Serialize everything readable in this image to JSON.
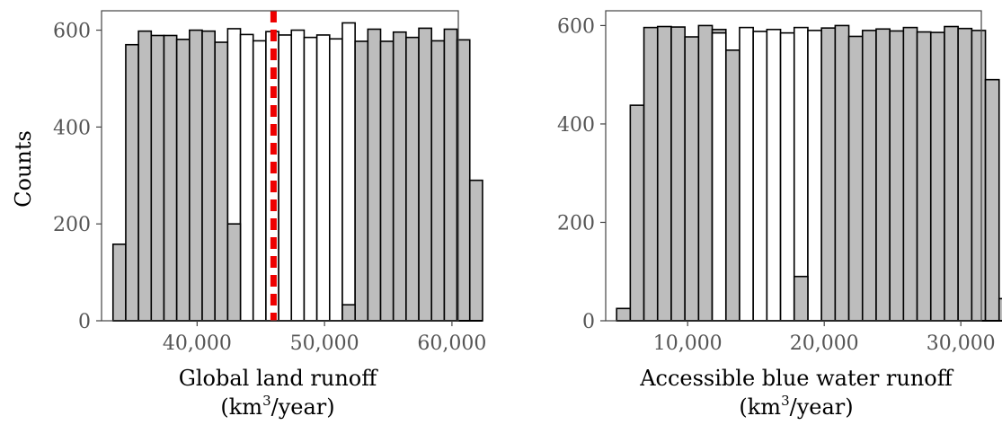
{
  "chart_data": [
    {
      "type": "bar",
      "subtype": "histogram",
      "ylabel": "Counts",
      "xlabel_line1": "Global land runoff",
      "xlabel_line2_pre": "(km",
      "xlabel_line2_sup": "3",
      "xlabel_line2_post": "/year)",
      "xlim": [
        32500,
        60500
      ],
      "ylim": [
        0,
        640
      ],
      "x_ticks": [
        40000,
        50000,
        60000
      ],
      "x_tick_labels": [
        "40,000",
        "50,000",
        "60,000"
      ],
      "y_ticks": [
        0,
        200,
        400,
        600
      ],
      "y_tick_labels": [
        "0",
        "200",
        "400",
        "600"
      ],
      "bin_start": 33400,
      "bin_width": 1000,
      "values": [
        158,
        570,
        598,
        589,
        589,
        581,
        600,
        598,
        575,
        603,
        591,
        578,
        597,
        590,
        600,
        585,
        590,
        582,
        615,
        577,
        602,
        577,
        596,
        585,
        604,
        578,
        602,
        580,
        290
      ],
      "overlay_values": [
        null,
        null,
        null,
        null,
        null,
        null,
        null,
        null,
        null,
        200,
        null,
        null,
        null,
        null,
        null,
        null,
        null,
        null,
        33,
        null,
        null,
        null,
        null,
        null,
        null,
        null,
        null,
        null,
        null
      ],
      "bar_colors": [
        "gray",
        "gray",
        "gray",
        "gray",
        "gray",
        "gray",
        "gray",
        "gray",
        "gray",
        "white",
        "white",
        "white",
        "white",
        "white",
        "white",
        "white",
        "white",
        "white",
        "white",
        "gray",
        "gray",
        "gray",
        "gray",
        "gray",
        "gray",
        "gray",
        "gray",
        "gray",
        "gray"
      ],
      "vline": 46000,
      "vline_color": "#ee0000",
      "vline_style": "dashed",
      "grid": false
    },
    {
      "type": "bar",
      "subtype": "histogram",
      "ylabel": "",
      "xlabel_line1": "Accessible blue water runoff",
      "xlabel_line2_pre": "(km",
      "xlabel_line2_sup": "3",
      "xlabel_line2_post": "/year)",
      "xlim": [
        4000,
        31500
      ],
      "ylim": [
        0,
        630
      ],
      "x_ticks": [
        10000,
        20000,
        30000
      ],
      "x_tick_labels": [
        "10,000",
        "20,000",
        "30,000"
      ],
      "y_ticks": [
        0,
        200,
        400,
        600
      ],
      "y_tick_labels": [
        "0",
        "200",
        "400",
        "600"
      ],
      "bin_start": 4800,
      "bin_width": 1000,
      "values": [
        25,
        438,
        596,
        598,
        597,
        577,
        600,
        592,
        550,
        596,
        588,
        592,
        585,
        596,
        590,
        595,
        600,
        578,
        590,
        593,
        589,
        596,
        587,
        586,
        598,
        594,
        590,
        490,
        45
      ],
      "overlay_values": [
        null,
        null,
        null,
        null,
        null,
        null,
        null,
        null,
        null,
        null,
        null,
        null,
        null,
        null,
        null,
        null,
        null,
        null,
        null,
        null,
        null,
        null,
        null,
        null,
        null,
        null,
        null,
        null,
        null
      ],
      "white_overlay_values": [
        null,
        null,
        null,
        null,
        null,
        null,
        null,
        585,
        null,
        null,
        null,
        null,
        null,
        null,
        null,
        null,
        null,
        null,
        null,
        null,
        null,
        null,
        null,
        null,
        null,
        null,
        null,
        null,
        null
      ],
      "low_overlay_index": 13,
      "low_overlay_value": 90,
      "bar_colors": [
        "gray",
        "gray",
        "gray",
        "gray",
        "gray",
        "gray",
        "gray",
        "gray",
        "gray",
        "white",
        "white",
        "white",
        "white",
        "white",
        "white",
        "gray",
        "gray",
        "gray",
        "gray",
        "gray",
        "gray",
        "gray",
        "gray",
        "gray",
        "gray",
        "gray",
        "gray",
        "gray",
        "gray"
      ],
      "grid": false
    }
  ],
  "colors": {
    "bar_gray": "#bdbdbd",
    "bar_white": "#ffffff",
    "outline": "#000000",
    "frame": "#444444"
  }
}
